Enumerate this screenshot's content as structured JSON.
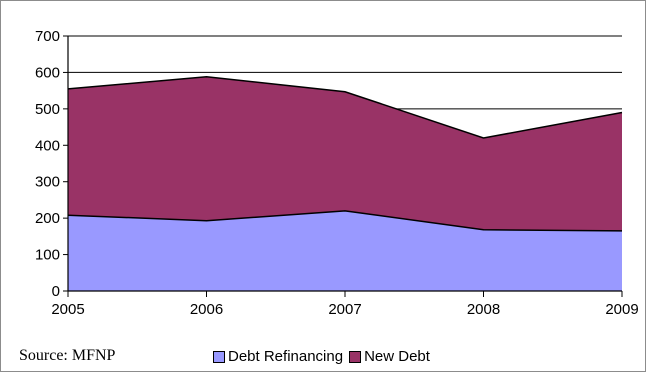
{
  "chart_data": {
    "type": "area",
    "stacked": true,
    "x": [
      "2005",
      "2006",
      "2007",
      "2008",
      "2009"
    ],
    "series": [
      {
        "name": "Debt Refinancing",
        "values": [
          208,
          193,
          220,
          168,
          165
        ],
        "color": "#9999ff"
      },
      {
        "name": "New Debt",
        "values": [
          347,
          395,
          327,
          252,
          325
        ],
        "color": "#993366"
      }
    ],
    "ylim": [
      0,
      700
    ],
    "yticks": [
      "0",
      "100",
      "200",
      "300",
      "400",
      "500",
      "600",
      "700"
    ],
    "grid": true,
    "legend_position": "bottom",
    "source_note": "Source: MFNP"
  }
}
